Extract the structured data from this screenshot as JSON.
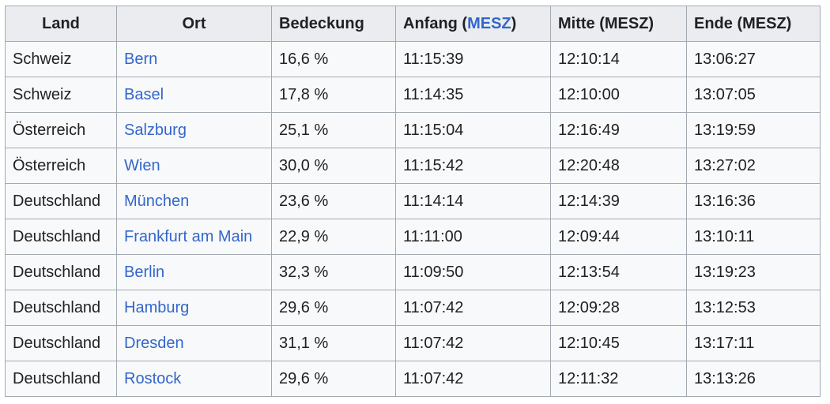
{
  "table": {
    "header": [
      "Land",
      "Ort",
      "Bedeckung",
      [
        "Anfang (",
        "MESZ",
        ")"
      ],
      "Mitte (MESZ)",
      "Ende (MESZ)"
    ],
    "rows": [
      [
        "Schweiz",
        "Bern",
        "16,6 %",
        "11:15:39",
        "12:10:14",
        "13:06:27"
      ],
      [
        "Schweiz",
        "Basel",
        "17,8 %",
        "11:14:35",
        "12:10:00",
        "13:07:05"
      ],
      [
        "Österreich",
        "Salzburg",
        "25,1 %",
        "11:15:04",
        "12:16:49",
        "13:19:59"
      ],
      [
        "Österreich",
        "Wien",
        "30,0 %",
        "11:15:42",
        "12:20:48",
        "13:27:02"
      ],
      [
        "Deutschland",
        "München",
        "23,6 %",
        "11:14:14",
        "12:14:39",
        "13:16:36"
      ],
      [
        "Deutschland",
        "Frankfurt am Main",
        "22,9 %",
        "11:11:00",
        "12:09:44",
        "13:10:11"
      ],
      [
        "Deutschland",
        "Berlin",
        "32,3 %",
        "11:09:50",
        "12:13:54",
        "13:19:23"
      ],
      [
        "Deutschland",
        "Hamburg",
        "29,6 %",
        "11:07:42",
        "12:09:28",
        "13:12:53"
      ],
      [
        "Deutschland",
        "Dresden",
        "31,1 %",
        "11:07:42",
        "12:10:45",
        "13:17:11"
      ],
      [
        "Deutschland",
        "Rostock",
        "29,6 %",
        "11:07:42",
        "12:11:32",
        "13:13:26"
      ]
    ]
  }
}
